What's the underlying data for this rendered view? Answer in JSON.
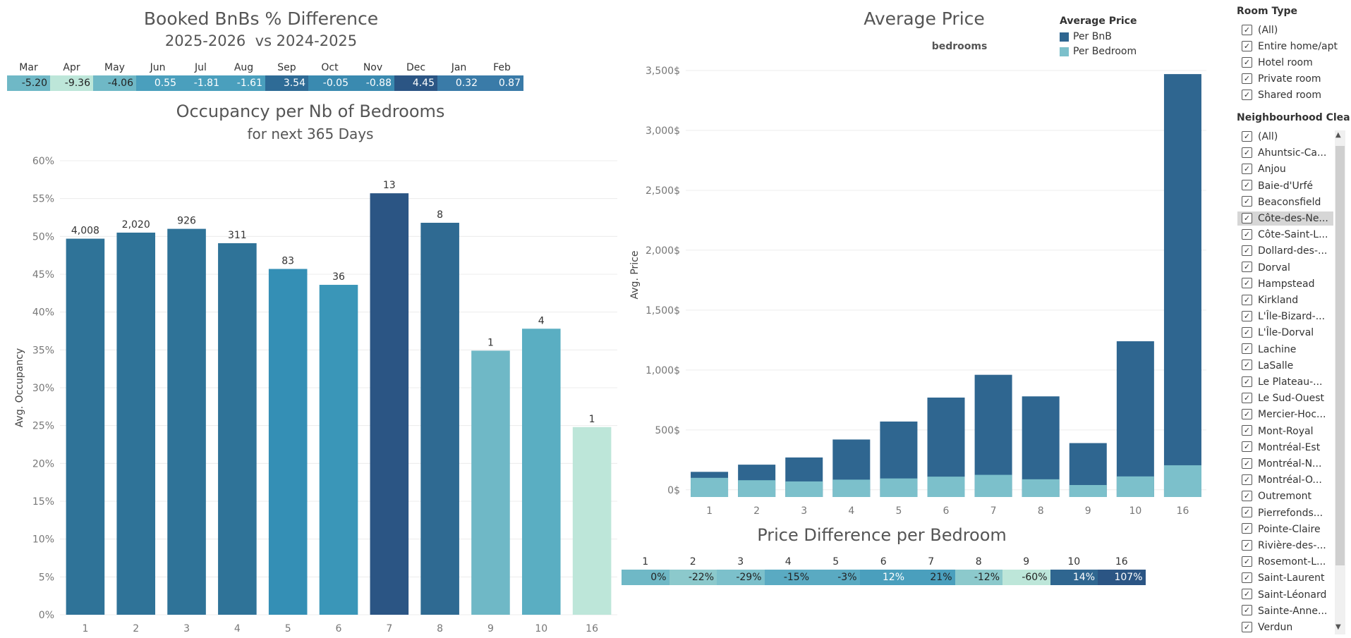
{
  "booked": {
    "title": "Booked BnBs % Difference",
    "subtitle": "2025-2026  vs 2024-2025",
    "months": [
      "Mar",
      "Apr",
      "May",
      "Jun",
      "Jul",
      "Aug",
      "Sep",
      "Oct",
      "Nov",
      "Dec",
      "Jan",
      "Feb"
    ],
    "values": [
      "-5.20",
      "-9.36",
      "-4.06",
      "0.55",
      "-1.81",
      "-1.61",
      "3.54",
      "-0.05",
      "-0.88",
      "4.45",
      "0.32",
      "0.87"
    ],
    "colors": [
      "#6fb8c6",
      "#bde6d9",
      "#6fb8c6",
      "#4a9fbd",
      "#4a9fbd",
      "#4a9fbd",
      "#2e6b96",
      "#3a8ab0",
      "#3a8ab0",
      "#2b5584",
      "#3a7ba8",
      "#3a7ba8"
    ],
    "text_colors": [
      "#222",
      "#222",
      "#222",
      "#fff",
      "#fff",
      "#fff",
      "#fff",
      "#fff",
      "#fff",
      "#fff",
      "#fff",
      "#fff"
    ]
  },
  "occupancy": {
    "title": "Occupancy per Nb of Bedrooms",
    "subtitle": "for next 365 Days"
  },
  "price": {
    "title": "Average Price",
    "subtitle": "bedrooms",
    "legend_title": "Average Price",
    "legend": [
      {
        "label": "Per BnB",
        "color": "#2f6690"
      },
      {
        "label": "Per Bedroom",
        "color": "#7cc0cb"
      }
    ]
  },
  "price_diff": {
    "title": "Price Difference per Bedroom",
    "bedrooms": [
      "1",
      "2",
      "3",
      "4",
      "5",
      "6",
      "7",
      "8",
      "9",
      "10",
      "16"
    ],
    "values": [
      "0%",
      "-22%",
      "-29%",
      "-15%",
      "-3%",
      "12%",
      "21%",
      "-12%",
      "-60%",
      "14%",
      "107%"
    ],
    "colors": [
      "#6fb8c6",
      "#8cc9cc",
      "#7cc0cb",
      "#5aaac2",
      "#5aaac2",
      "#4a9fbd",
      "#4a9fbd",
      "#8cc9cc",
      "#bde6d9",
      "#2f6690",
      "#2b5584"
    ],
    "text_colors": [
      "#222",
      "#222",
      "#222",
      "#222",
      "#222",
      "#fff",
      "#222",
      "#222",
      "#222",
      "#fff",
      "#fff"
    ]
  },
  "chart_data": [
    {
      "type": "bar",
      "title": "Occupancy per Nb of Bedrooms",
      "subtitle": "for next 365 Days",
      "xlabel": "",
      "ylabel": "Avg. Occupancy",
      "categories": [
        "1",
        "2",
        "3",
        "4",
        "5",
        "6",
        "7",
        "8",
        "9",
        "10",
        "16"
      ],
      "values": [
        49.7,
        50.5,
        51.0,
        49.1,
        45.7,
        43.6,
        55.7,
        51.8,
        34.9,
        37.8,
        24.8
      ],
      "labels": [
        "4,008",
        "2,020",
        "926",
        "311",
        "83",
        "36",
        "13",
        "8",
        "1",
        "4",
        "1"
      ],
      "colors": [
        "#2f7398",
        "#2f7398",
        "#2f7398",
        "#2f7398",
        "#348fb5",
        "#3a96b8",
        "#2b5584",
        "#2f6a92",
        "#6fb8c6",
        "#5aaec2",
        "#bde6d9"
      ],
      "ylim": [
        0,
        60
      ],
      "yticks": [
        "0%",
        "5%",
        "10%",
        "15%",
        "20%",
        "25%",
        "30%",
        "35%",
        "40%",
        "45%",
        "50%",
        "55%",
        "60%"
      ],
      "grid": true
    },
    {
      "type": "bar",
      "title": "Average Price",
      "subtitle": "bedrooms",
      "xlabel": "",
      "ylabel": "Avg. Price",
      "categories": [
        "1",
        "2",
        "3",
        "4",
        "5",
        "6",
        "7",
        "8",
        "9",
        "10",
        "16"
      ],
      "series": [
        {
          "name": "Per BnB",
          "values": [
            150,
            210,
            270,
            420,
            570,
            770,
            960,
            780,
            390,
            1240,
            3470
          ],
          "color": "#2f6690"
        },
        {
          "name": "Per Bedroom",
          "values": [
            100,
            80,
            70,
            85,
            95,
            110,
            125,
            88,
            40,
            112,
            205
          ],
          "color": "#7cc0cb"
        }
      ],
      "ylim": [
        -60,
        3500
      ],
      "yticks": [
        "0$",
        "500$",
        "1,000$",
        "1,500$",
        "2,000$",
        "2,500$",
        "3,000$",
        "3,500$"
      ],
      "legend": "top-right",
      "grid": true
    }
  ],
  "filters": {
    "room_type": {
      "title": "Room Type",
      "items": [
        "(All)",
        "Entire home/apt",
        "Hotel room",
        "Private room",
        "Shared room"
      ]
    },
    "neighbourhood": {
      "title": "Neighbourhood Clea..",
      "items": [
        "(All)",
        "Ahuntsic-Ca...",
        "Anjou",
        "Baie-d'Urfé",
        "Beaconsfield",
        "Côte-des-Ne...",
        "Côte-Saint-L...",
        "Dollard-des-...",
        "Dorval",
        "Hampstead",
        "Kirkland",
        "L'Île-Bizard-...",
        "L'Île-Dorval",
        "Lachine",
        "LaSalle",
        "Le Plateau-...",
        "Le Sud-Ouest",
        "Mercier-Hoc...",
        "Mont-Royal",
        "Montréal-Est",
        "Montréal-N...",
        "Montréal-O...",
        "Outremont",
        "Pierrefonds...",
        "Pointe-Claire",
        "Rivière-des-...",
        "Rosemont-L...",
        "Saint-Laurent",
        "Saint-Léonard",
        "Sainte-Anne...",
        "Verdun"
      ],
      "highlighted_index": 5
    },
    "check": "✓",
    "scroll_up": "▲",
    "scroll_down": "▼"
  }
}
